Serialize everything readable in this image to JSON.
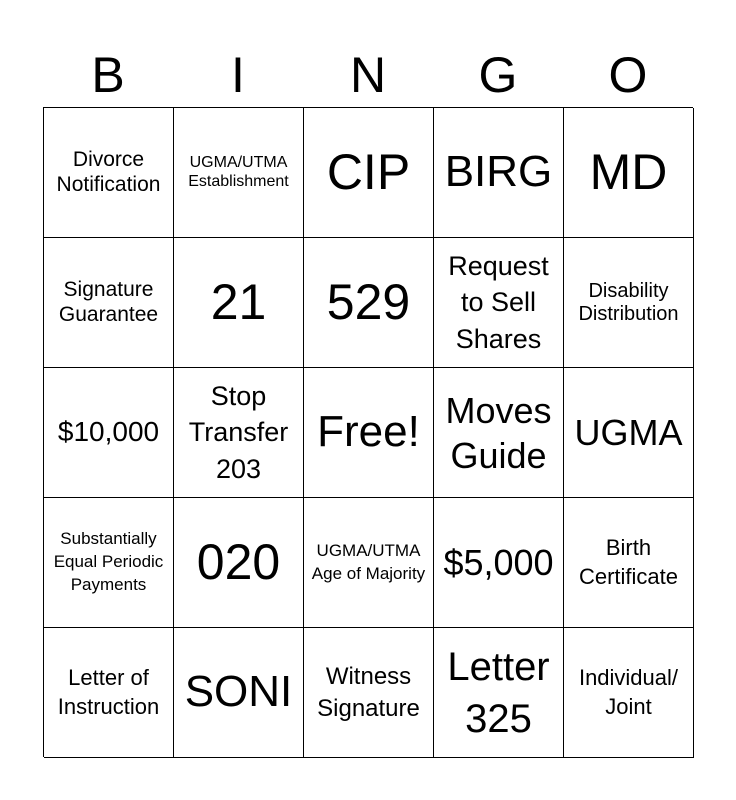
{
  "header": [
    "B",
    "I",
    "N",
    "G",
    "O"
  ],
  "cells": [
    "Divorce Notification",
    "UGMA/UTMA Establishment",
    "CIP",
    "BIRG",
    "MD",
    "Signature Guarantee",
    "21",
    "529",
    "Request to Sell Shares",
    "Disability Distribution",
    "$10,000",
    "Stop Transfer 203",
    "Free!",
    "Moves Guide",
    "UGMA",
    "Substantially Equal Periodic Payments",
    "020",
    "UGMA/UTMA Age of Majority",
    "$5,000",
    "Birth Certificate",
    "Letter of Instruction",
    "SONI",
    "Witness Signature",
    "Letter 325",
    "Individual/ Joint"
  ]
}
